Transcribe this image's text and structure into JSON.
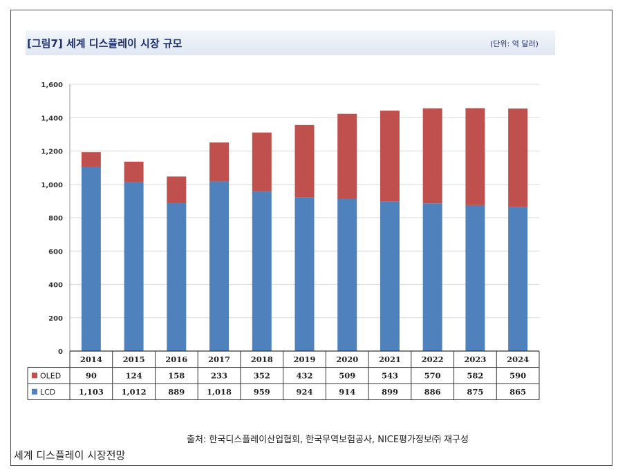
{
  "figure": {
    "title": "[그림7] 세계 디스플레이 시장 규모",
    "unit": "(단위: 억 달러)",
    "source": "출처: 한국디스플레이산업협회, 한국무역보험공사, NICE평가정보㈜ 재구성",
    "caption": "세계 디스플레이 시장전망"
  },
  "colors": {
    "oled": "#c0504d",
    "lcd": "#4f81bd",
    "grid": "#d9d9d9"
  },
  "chart_data": {
    "type": "bar",
    "stacked": true,
    "categories": [
      "2014",
      "2015",
      "2016",
      "2017",
      "2018",
      "2019",
      "2020",
      "2021",
      "2022",
      "2023",
      "2024"
    ],
    "series": [
      {
        "name": "LCD",
        "values": [
          1103,
          1012,
          889,
          1018,
          959,
          924,
          914,
          899,
          886,
          875,
          865
        ]
      },
      {
        "name": "OLED",
        "values": [
          90,
          124,
          158,
          233,
          352,
          432,
          509,
          543,
          570,
          582,
          590
        ]
      }
    ],
    "table_rows": [
      {
        "name": "OLED",
        "cells": [
          "90",
          "124",
          "158",
          "233",
          "352",
          "432",
          "509",
          "543",
          "570",
          "582",
          "590"
        ]
      },
      {
        "name": "LCD",
        "cells": [
          "1,103",
          "1,012",
          "889",
          "1,018",
          "959",
          "924",
          "914",
          "899",
          "886",
          "875",
          "865"
        ]
      }
    ],
    "yticks": [
      "0",
      "200",
      "400",
      "600",
      "800",
      "1,000",
      "1,200",
      "1,400",
      "1,600"
    ],
    "ylim": [
      0,
      1600
    ],
    "grid": true,
    "legend": "data table"
  }
}
